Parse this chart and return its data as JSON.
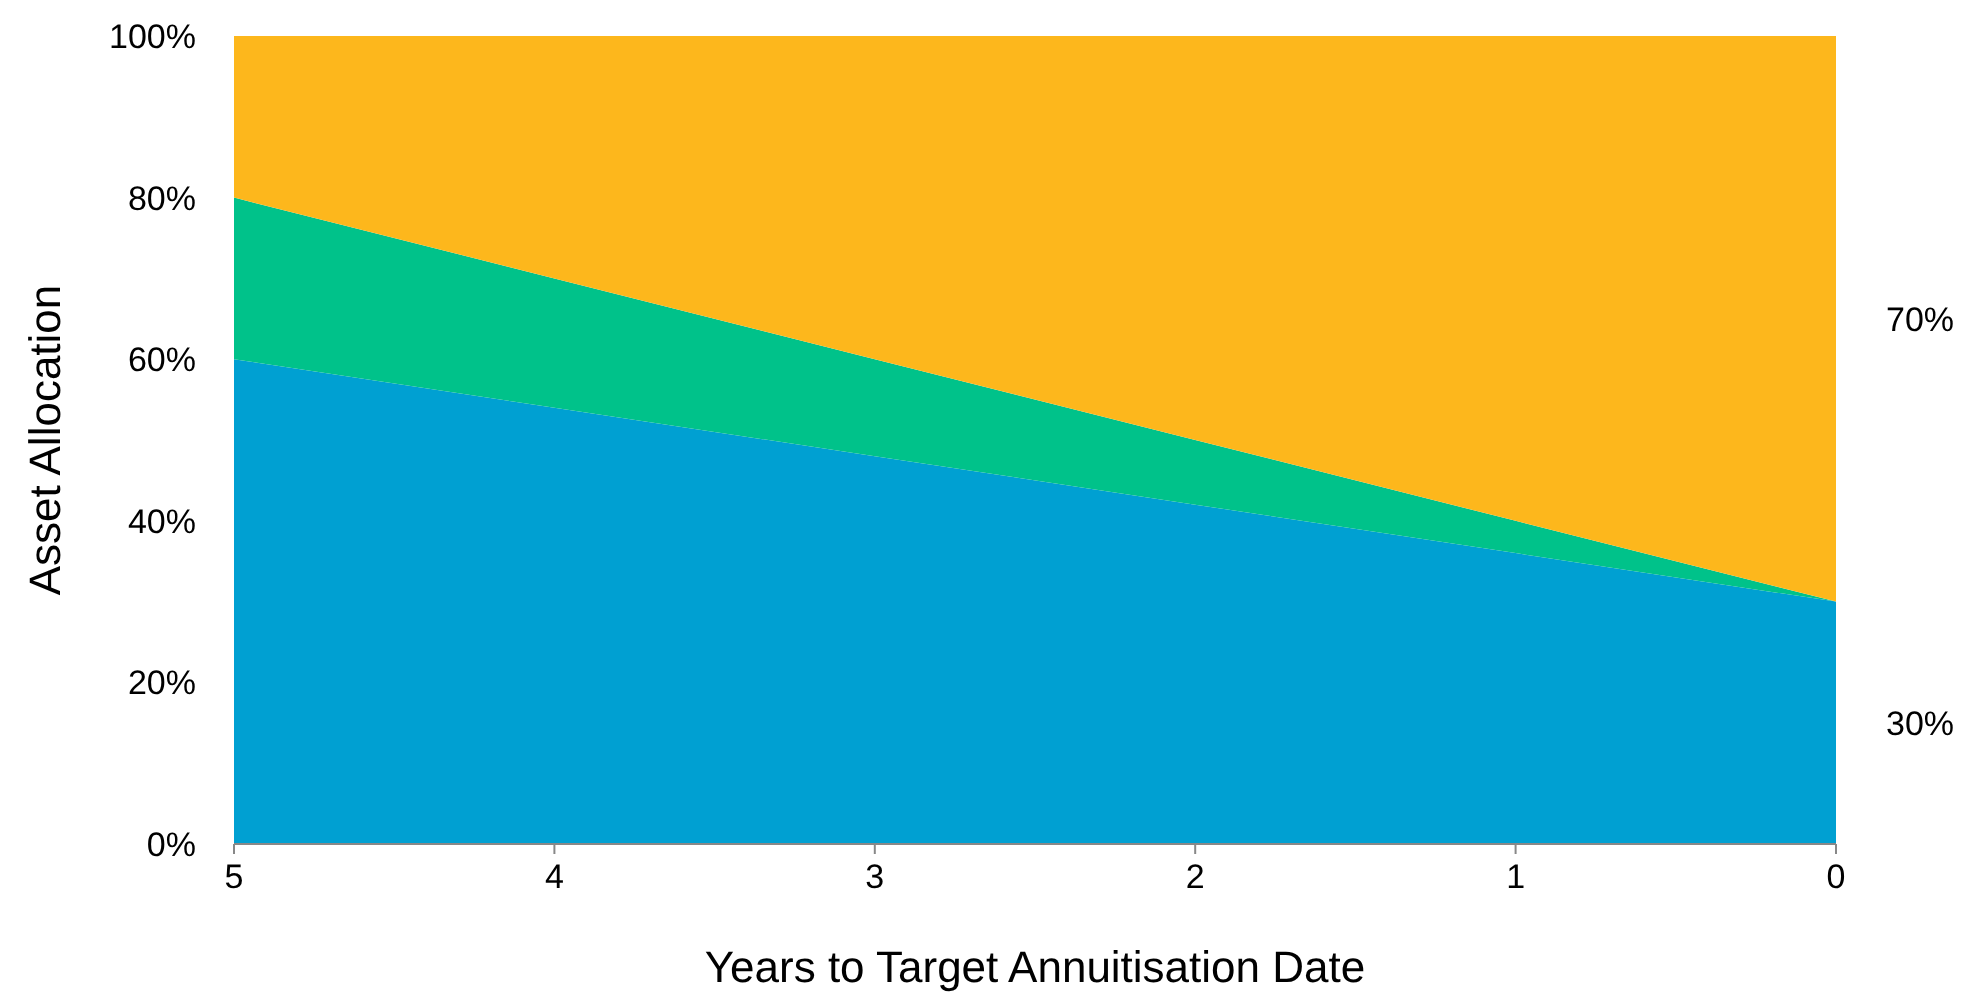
{
  "chart_data": {
    "type": "area",
    "stacked": true,
    "xlabel": "Years to Target Annuitisation Date",
    "ylabel": "Asset Allocation",
    "x": [
      5,
      4,
      3,
      2,
      1,
      0
    ],
    "series": [
      {
        "color": "#00a0d2",
        "values": [
          60,
          54,
          48,
          42,
          36,
          30
        ]
      },
      {
        "color": "#00c28a",
        "values": [
          20,
          16,
          12,
          8,
          4,
          0
        ]
      },
      {
        "color": "#fdb71c",
        "values": [
          20,
          30,
          40,
          50,
          60,
          70
        ]
      }
    ],
    "xlim": [
      5,
      0
    ],
    "xticks": [
      5,
      4,
      3,
      2,
      1,
      0
    ],
    "ylim": [
      0,
      100
    ],
    "yticks": [
      {
        "value": 0,
        "label": "0%"
      },
      {
        "value": 20,
        "label": "20%"
      },
      {
        "value": 40,
        "label": "40%"
      },
      {
        "value": 60,
        "label": "60%"
      },
      {
        "value": 80,
        "label": "80%"
      },
      {
        "value": 100,
        "label": "100%"
      }
    ],
    "grid": false,
    "annotations": [
      {
        "text": "70%",
        "x": 0,
        "y": 65
      },
      {
        "text": "30%",
        "x": 0,
        "y": 15
      }
    ]
  }
}
